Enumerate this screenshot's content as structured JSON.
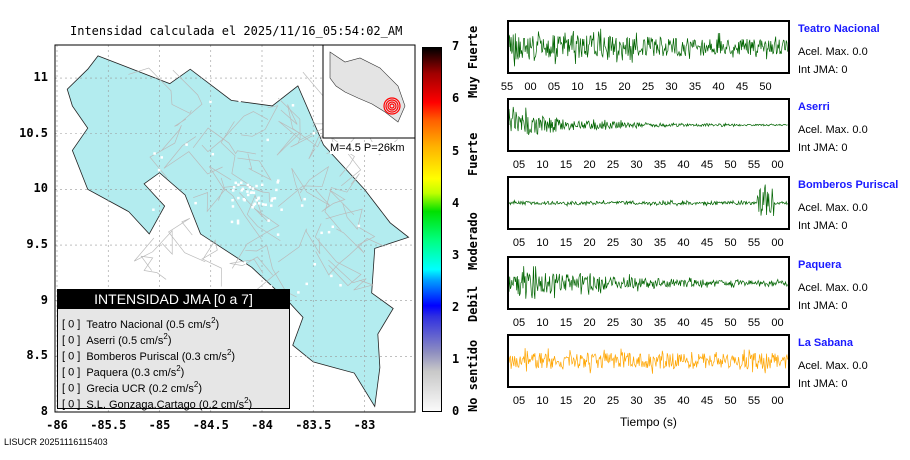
{
  "title": "Intensidad calculada el 2025/11/16_05:54:02_AM",
  "map": {
    "lat_ticks": [
      "11",
      "10.5",
      "10",
      "9.5",
      "9",
      "8.5",
      "8"
    ],
    "lon_ticks": [
      "-86",
      "-85.5",
      "-85",
      "-84.5",
      "-84",
      "-83.5",
      "-83"
    ],
    "inset_label": "M=4.5 P=26km",
    "land_color": "#b3ecef"
  },
  "legend": {
    "title": "INTENSIDAD JMA [0 a 7]",
    "rows": [
      {
        "int": "[ 0 ]",
        "name": "Teatro Nacional (0.5 cm/s",
        "sup": "2",
        ")": ")"
      },
      {
        "int": "[ 0 ]",
        "name": "Aserri (0.5 cm/s",
        "sup": "2"
      },
      {
        "int": "[ 0 ]",
        "name": "Bomberos Puriscal (0.3 cm/s",
        "sup": "2"
      },
      {
        "int": "[ 0 ]",
        "name": "Paquera (0.3 cm/s",
        "sup": "2"
      },
      {
        "int": "[ 0 ]",
        "name": "Grecia UCR (0.2 cm/s",
        "sup": "2"
      },
      {
        "int": "[ 0 ]",
        "name": "S.L. Gonzaga.Cartago (0.2 cm/s",
        "sup": "2"
      }
    ]
  },
  "colorbar": {
    "ticks": [
      "0",
      "1",
      "2",
      "3",
      "4",
      "5",
      "6",
      "7"
    ],
    "words": [
      "No sentido",
      "Debil",
      "Moderado",
      "Fuerte",
      "Muy Fuerte"
    ]
  },
  "traces": {
    "stations": [
      {
        "name": "Teatro Nacional",
        "acel": "Acel. Max. 0.0",
        "jma": "Int JMA: 0",
        "ticks": [
          "55",
          "00",
          "05",
          "10",
          "15",
          "20",
          "25",
          "30",
          "35",
          "40",
          "45",
          "50"
        ],
        "color": "#006400"
      },
      {
        "name": "Aserri",
        "acel": "Acel. Max. 0.0",
        "jma": "Int JMA: 0",
        "ticks": [
          "05",
          "10",
          "15",
          "20",
          "25",
          "30",
          "35",
          "40",
          "45",
          "50",
          "55",
          "00"
        ],
        "color": "#006400"
      },
      {
        "name": "Bomberos Puriscal",
        "acel": "Acel. Max. 0.0",
        "jma": "Int JMA: 0",
        "ticks": [
          "05",
          "10",
          "15",
          "20",
          "25",
          "30",
          "35",
          "40",
          "45",
          "50",
          "55",
          "00"
        ],
        "color": "#006400"
      },
      {
        "name": "Paquera",
        "acel": "Acel. Max. 0.0",
        "jma": "Int JMA: 0",
        "ticks": [
          "05",
          "10",
          "15",
          "20",
          "25",
          "30",
          "35",
          "40",
          "45",
          "50",
          "55",
          "00"
        ],
        "color": "#006400"
      },
      {
        "name": "La Sabana",
        "acel": "Acel. Max. 0.0",
        "jma": "Int JMA: 0",
        "ticks": [
          "05",
          "10",
          "15",
          "20",
          "25",
          "30",
          "35",
          "40",
          "45",
          "50",
          "55",
          "00"
        ],
        "color": "#ffa500"
      }
    ],
    "xlabel": "Tiempo (s)"
  },
  "footer": "LISUCR 20251116115403"
}
